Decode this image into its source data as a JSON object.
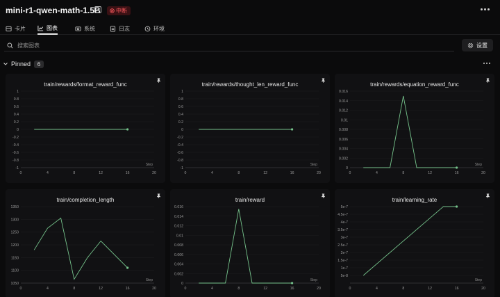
{
  "header": {
    "title": "mini-r1-qwen-math-1.5B",
    "status": "中断"
  },
  "tabs": [
    {
      "label": "卡片",
      "icon": "card-icon"
    },
    {
      "label": "图表",
      "icon": "chart-icon"
    },
    {
      "label": "系统",
      "icon": "system-icon"
    },
    {
      "label": "日志",
      "icon": "log-icon"
    },
    {
      "label": "环境",
      "icon": "environment-icon"
    }
  ],
  "search": {
    "placeholder": "搜索图表"
  },
  "settings": {
    "label": "设置"
  },
  "section": {
    "label": "Pinned",
    "count": "6"
  },
  "colors": {
    "line": "#76c48c",
    "badge": "#ff5a5f"
  },
  "chart_data": [
    {
      "type": "line",
      "title": "train/rewards/format_reward_func",
      "xlabel": "Step",
      "xlim": [
        0,
        20
      ],
      "xticks": [
        "0",
        "4",
        "8",
        "12",
        "16",
        "20"
      ],
      "ylim": [
        -1,
        1
      ],
      "yticks": [
        "-1",
        "-0.8",
        "-0.6",
        "-0.4",
        "-0.2",
        "0",
        "0.2",
        "0.4",
        "0.6",
        "0.8",
        "1"
      ],
      "x": [
        2,
        16
      ],
      "y": [
        0,
        0
      ],
      "end_marker": true
    },
    {
      "type": "line",
      "title": "train/rewards/thought_len_reward_func",
      "xlabel": "Step",
      "xlim": [
        0,
        20
      ],
      "xticks": [
        "0",
        "4",
        "8",
        "12",
        "16",
        "20"
      ],
      "ylim": [
        -1,
        1
      ],
      "yticks": [
        "-1",
        "-0.8",
        "-0.6",
        "-0.4",
        "-0.2",
        "0",
        "0.2",
        "0.4",
        "0.6",
        "0.8",
        "1"
      ],
      "x": [
        2,
        16
      ],
      "y": [
        0,
        0
      ],
      "end_marker": true
    },
    {
      "type": "line",
      "title": "train/rewards/equation_reward_func",
      "xlabel": "Step",
      "xlim": [
        0,
        20
      ],
      "xticks": [
        "0",
        "4",
        "8",
        "12",
        "16",
        "20"
      ],
      "ylim": [
        0,
        0.016
      ],
      "yticks": [
        "0",
        "0.002",
        "0.004",
        "0.006",
        "0.008",
        "0.01",
        "0.012",
        "0.014",
        "0.016"
      ],
      "x": [
        2,
        6,
        8,
        10,
        16
      ],
      "y": [
        0,
        0,
        0.015,
        0,
        0
      ],
      "end_marker": true
    },
    {
      "type": "line",
      "title": "train/completion_length",
      "xlabel": "Step",
      "xlim": [
        0,
        20
      ],
      "xticks": [
        "0",
        "4",
        "8",
        "12",
        "16",
        "20"
      ],
      "ylim": [
        1050,
        1350
      ],
      "yticks": [
        "1050",
        "1100",
        "1150",
        "1200",
        "1250",
        "1300",
        "1350"
      ],
      "x": [
        2,
        4,
        6,
        8,
        10,
        12,
        16
      ],
      "y": [
        1180,
        1265,
        1305,
        1065,
        1150,
        1215,
        1110
      ],
      "end_marker": true
    },
    {
      "type": "line",
      "title": "train/reward",
      "xlabel": "Step",
      "xlim": [
        0,
        20
      ],
      "xticks": [
        "0",
        "4",
        "8",
        "12",
        "16",
        "20"
      ],
      "ylim": [
        0,
        0.016
      ],
      "yticks": [
        "0",
        "0.002",
        "0.004",
        "0.006",
        "0.008",
        "0.01",
        "0.012",
        "0.014",
        "0.016"
      ],
      "x": [
        2,
        6,
        8,
        10,
        16
      ],
      "y": [
        0,
        0,
        0.0155,
        0,
        0
      ],
      "end_marker": true
    },
    {
      "type": "line",
      "title": "train/learning_rate",
      "xlabel": "Step",
      "xlim": [
        0,
        20
      ],
      "xticks": [
        "0",
        "4",
        "8",
        "12",
        "16",
        "20"
      ],
      "ylim": [
        0,
        5e-07
      ],
      "yticks": [
        "5e-8",
        "1e-7",
        "1.5e-7",
        "2e-7",
        "2.5e-7",
        "3e-7",
        "3.5e-7",
        "4e-7",
        "4.5e-7",
        "5e-7"
      ],
      "ytick_values": [
        5e-08,
        1e-07,
        1.5e-07,
        2e-07,
        2.5e-07,
        3e-07,
        3.5e-07,
        4e-07,
        4.5e-07,
        5e-07
      ],
      "x": [
        2,
        14,
        16
      ],
      "y": [
        5e-08,
        5e-07,
        5e-07
      ],
      "end_marker": true
    }
  ]
}
